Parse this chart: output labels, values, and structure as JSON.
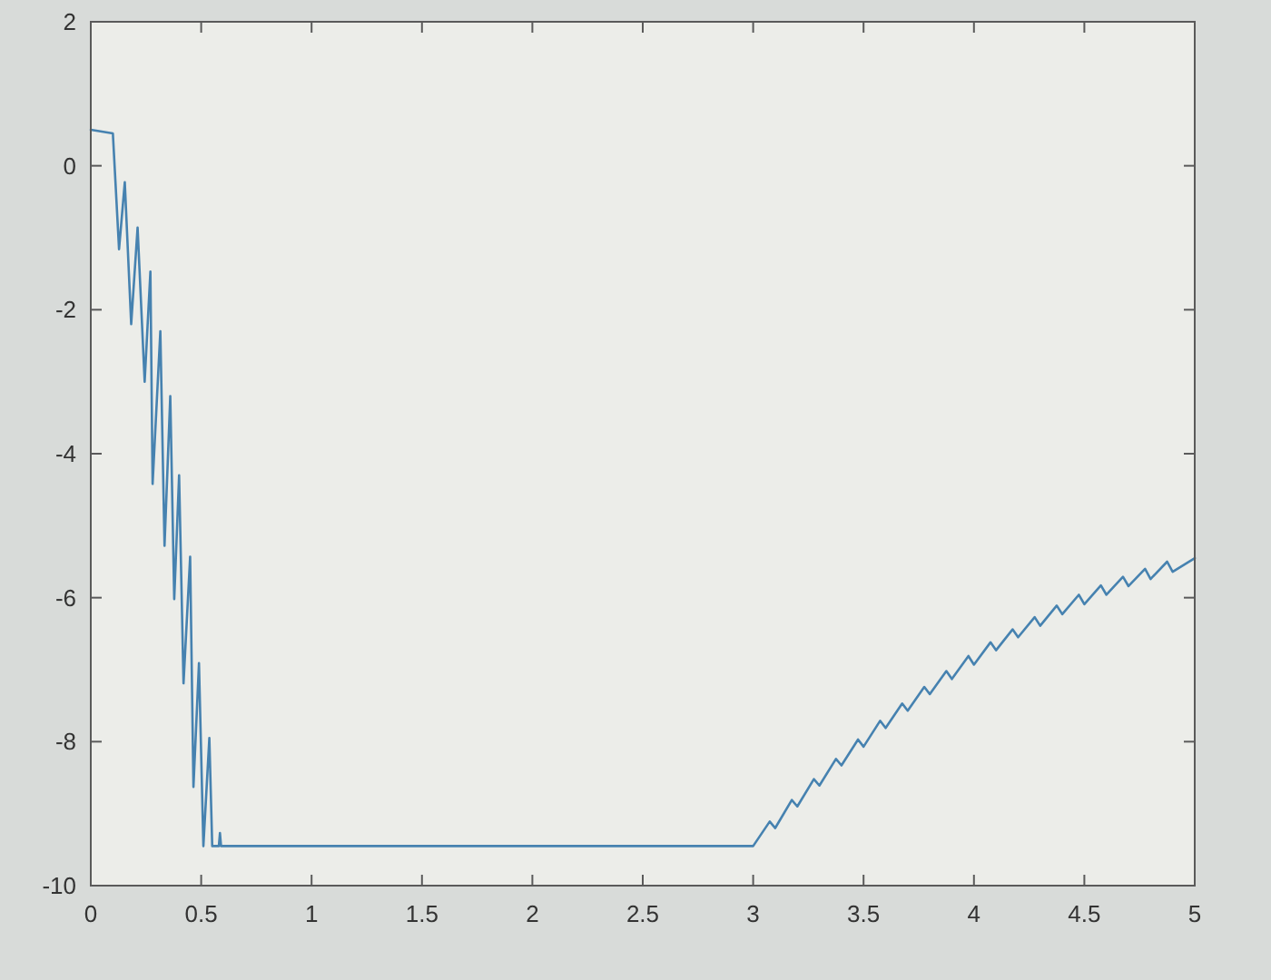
{
  "chart_data": {
    "type": "line",
    "color": "#4682b0",
    "line_style": "solid",
    "x": [
      0,
      0.1,
      0.128,
      0.154,
      0.183,
      0.212,
      0.244,
      0.27,
      0.28,
      0.315,
      0.334,
      0.36,
      0.378,
      0.4,
      0.42,
      0.45,
      0.465,
      0.49,
      0.51,
      0.537,
      0.55,
      0.58,
      0.585,
      0.59,
      3.0,
      3.075,
      3.1,
      3.175,
      3.2,
      3.275,
      3.3,
      3.375,
      3.4,
      3.475,
      3.5,
      3.575,
      3.6,
      3.675,
      3.7,
      3.775,
      3.8,
      3.875,
      3.9,
      3.975,
      4.0,
      4.075,
      4.1,
      4.175,
      4.2,
      4.275,
      4.3,
      4.375,
      4.4,
      4.475,
      4.5,
      4.575,
      4.6,
      4.675,
      4.7,
      4.775,
      4.8,
      4.875,
      4.9,
      5.0
    ],
    "values": [
      0.5,
      0.45,
      -1.16,
      -0.23,
      -2.2,
      -0.86,
      -3.0,
      -1.47,
      -4.42,
      -2.3,
      -5.28,
      -3.2,
      -6.02,
      -4.3,
      -7.19,
      -5.43,
      -8.63,
      -6.91,
      -9.45,
      -7.95,
      -9.45,
      -9.45,
      -9.27,
      -9.45,
      -9.45,
      -9.11,
      -9.2,
      -8.81,
      -8.9,
      -8.52,
      -8.61,
      -8.24,
      -8.33,
      -7.97,
      -8.07,
      -7.71,
      -7.81,
      -7.47,
      -7.57,
      -7.24,
      -7.34,
      -7.02,
      -7.13,
      -6.81,
      -6.93,
      -6.62,
      -6.73,
      -6.44,
      -6.55,
      -6.27,
      -6.39,
      -6.11,
      -6.23,
      -5.96,
      -6.09,
      -5.83,
      -5.96,
      -5.71,
      -5.84,
      -5.6,
      -5.74,
      -5.5,
      -5.64,
      -5.45
    ],
    "xlim": [
      0,
      5
    ],
    "ylim": [
      -10,
      2
    ],
    "xticks": [
      0,
      0.5,
      1,
      1.5,
      2,
      2.5,
      3,
      3.5,
      4,
      4.5,
      5
    ],
    "yticks": [
      -10,
      -8,
      -6,
      -4,
      -2,
      0,
      2
    ]
  }
}
